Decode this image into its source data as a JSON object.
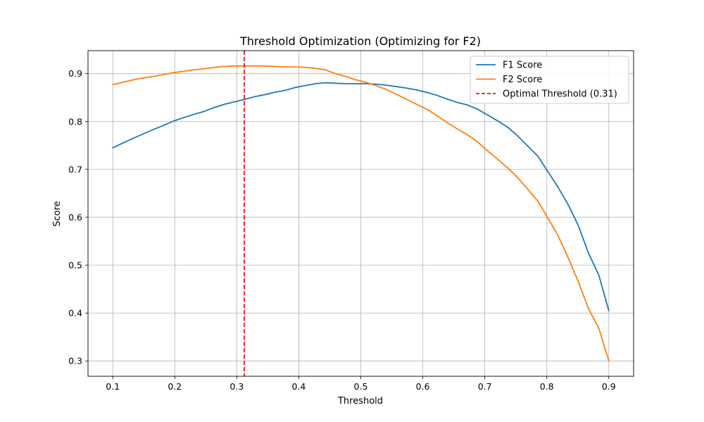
{
  "chart_data": {
    "type": "line",
    "title": "Threshold Optimization (Optimizing for F2)",
    "xlabel": "Threshold",
    "ylabel": "Score",
    "xlim": [
      0.06,
      0.94
    ],
    "ylim": [
      0.268,
      0.948
    ],
    "xticks": [
      0.1,
      0.2,
      0.3,
      0.4,
      0.5,
      0.6,
      0.7,
      0.8,
      0.9
    ],
    "xtick_labels": [
      "0.1",
      "0.2",
      "0.3",
      "0.4",
      "0.5",
      "0.6",
      "0.7",
      "0.8",
      "0.9"
    ],
    "yticks": [
      0.3,
      0.4,
      0.5,
      0.6,
      0.7,
      0.8,
      0.9
    ],
    "ytick_labels": [
      "0.3",
      "0.4",
      "0.5",
      "0.6",
      "0.7",
      "0.8",
      "0.9"
    ],
    "grid": true,
    "legend_position": "top-right",
    "series": [
      {
        "name": "F1 Score",
        "color": "#1f77b4",
        "style": "solid",
        "x": [
          0.1,
          0.116,
          0.133,
          0.149,
          0.165,
          0.182,
          0.198,
          0.214,
          0.231,
          0.247,
          0.263,
          0.28,
          0.296,
          0.312,
          0.329,
          0.345,
          0.361,
          0.378,
          0.394,
          0.41,
          0.427,
          0.443,
          0.459,
          0.476,
          0.492,
          0.508,
          0.524,
          0.541,
          0.557,
          0.573,
          0.59,
          0.606,
          0.622,
          0.639,
          0.655,
          0.671,
          0.688,
          0.704,
          0.72,
          0.737,
          0.753,
          0.769,
          0.786,
          0.802,
          0.818,
          0.835,
          0.851,
          0.867,
          0.884,
          0.9
        ],
        "y": [
          0.745,
          0.755,
          0.765,
          0.774,
          0.783,
          0.792,
          0.801,
          0.808,
          0.815,
          0.821,
          0.829,
          0.836,
          0.841,
          0.846,
          0.852,
          0.856,
          0.861,
          0.865,
          0.871,
          0.875,
          0.879,
          0.881,
          0.88,
          0.879,
          0.879,
          0.879,
          0.878,
          0.876,
          0.873,
          0.87,
          0.866,
          0.861,
          0.855,
          0.847,
          0.84,
          0.835,
          0.826,
          0.814,
          0.802,
          0.788,
          0.77,
          0.749,
          0.727,
          0.695,
          0.663,
          0.625,
          0.582,
          0.526,
          0.479,
          0.405
        ]
      },
      {
        "name": "F2 Score",
        "color": "#ff7f0e",
        "style": "solid",
        "x": [
          0.1,
          0.116,
          0.133,
          0.149,
          0.165,
          0.182,
          0.198,
          0.214,
          0.231,
          0.247,
          0.263,
          0.28,
          0.296,
          0.312,
          0.329,
          0.345,
          0.361,
          0.378,
          0.394,
          0.41,
          0.427,
          0.443,
          0.459,
          0.476,
          0.492,
          0.508,
          0.524,
          0.541,
          0.557,
          0.573,
          0.59,
          0.606,
          0.622,
          0.639,
          0.655,
          0.671,
          0.688,
          0.704,
          0.72,
          0.737,
          0.753,
          0.769,
          0.786,
          0.802,
          0.818,
          0.835,
          0.851,
          0.867,
          0.884,
          0.9
        ],
        "y": [
          0.877,
          0.882,
          0.887,
          0.891,
          0.894,
          0.898,
          0.902,
          0.905,
          0.908,
          0.91,
          0.913,
          0.915,
          0.916,
          0.916,
          0.916,
          0.916,
          0.915,
          0.914,
          0.914,
          0.913,
          0.911,
          0.908,
          0.9,
          0.894,
          0.887,
          0.882,
          0.875,
          0.867,
          0.857,
          0.847,
          0.836,
          0.826,
          0.813,
          0.798,
          0.785,
          0.773,
          0.758,
          0.739,
          0.722,
          0.703,
          0.683,
          0.659,
          0.633,
          0.598,
          0.562,
          0.514,
          0.465,
          0.41,
          0.368,
          0.3
        ]
      }
    ],
    "vline": {
      "name": "Optimal Threshold (0.31)",
      "x": 0.312,
      "color": "#e31a1c",
      "style": "dashed"
    }
  }
}
